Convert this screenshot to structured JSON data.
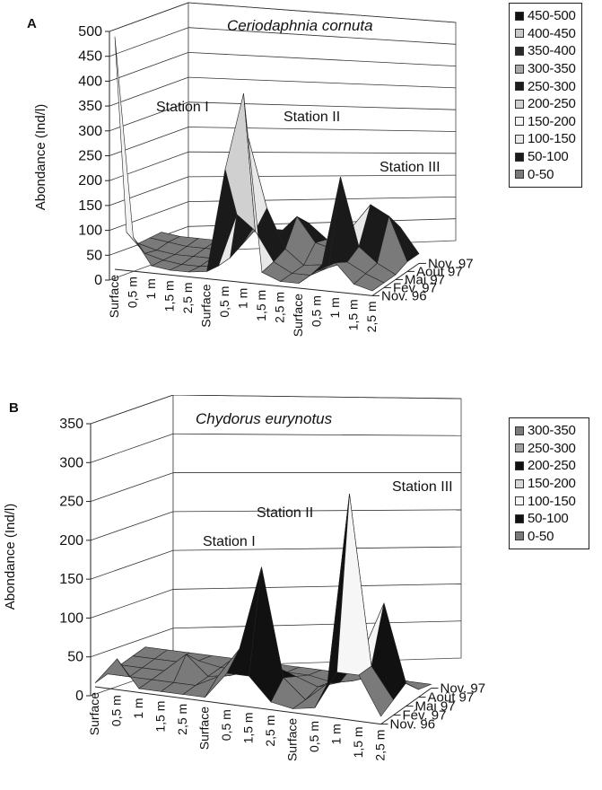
{
  "chart_data": [
    {
      "panel_label": "A",
      "type": "surface",
      "title": "Ceriodaphnia cornuta",
      "ylabel": "Abondance (Ind/l)",
      "ylim": [
        0,
        500
      ],
      "yticks": [
        "0",
        "50",
        "100",
        "150",
        "200",
        "250",
        "300",
        "350",
        "400",
        "450",
        "500"
      ],
      "x_tick_labels": [
        "Surface",
        "0,5 m",
        "1 m",
        "1,5 m",
        "2,5 m",
        "Surface",
        "0,5 m",
        "1 m",
        "1,5 m",
        "2,5 m",
        "Surface",
        "0,5 m",
        "1 m",
        "1,5 m",
        "2,5 m"
      ],
      "z_categories": [
        "Nov. 96",
        "Fév. 97",
        "Mai 97",
        "Août 97",
        "Nov. 97"
      ],
      "station_labels": [
        "Station I",
        "Station II",
        "Station III"
      ],
      "legend": [
        "450-500",
        "400-450",
        "350-400",
        "300-350",
        "250-300",
        "200-250",
        "150-200",
        "100-150",
        "50-100",
        "0-50"
      ],
      "series": [
        {
          "name": "Nov. 96",
          "values": [
            480,
            70,
            15,
            10,
            10,
            15,
            230,
            390,
            25,
            10,
            10,
            40,
            60,
            20,
            10
          ]
        },
        {
          "name": "Fév. 97",
          "values": [
            60,
            20,
            10,
            5,
            5,
            10,
            120,
            90,
            30,
            10,
            10,
            30,
            45,
            25,
            10
          ]
        },
        {
          "name": "Mai 97",
          "values": [
            20,
            10,
            5,
            5,
            5,
            10,
            260,
            120,
            40,
            10,
            15,
            200,
            60,
            30,
            10
          ]
        },
        {
          "name": "Août 97",
          "values": [
            15,
            10,
            5,
            5,
            5,
            20,
            80,
            50,
            90,
            40,
            30,
            80,
            130,
            110,
            20
          ]
        },
        {
          "name": "Nov. 97",
          "values": [
            10,
            5,
            5,
            5,
            5,
            30,
            40,
            40,
            60,
            30,
            20,
            60,
            50,
            70,
            20
          ]
        }
      ]
    },
    {
      "panel_label": "B",
      "type": "surface",
      "title": "Chydorus eurynotus",
      "ylabel": "Abondance (Ind/l)",
      "ylim": [
        0,
        350
      ],
      "yticks": [
        "0",
        "50",
        "100",
        "150",
        "200",
        "250",
        "300",
        "350"
      ],
      "x_tick_labels": [
        "Surface",
        "0,5 m",
        "1 m",
        "1,5 m",
        "2,5 m",
        "Surface",
        "0,5 m",
        "1,5 m",
        "2,5 m",
        "Surface",
        "0,5 m",
        "1 m",
        "1,5 m",
        "2,5 m"
      ],
      "z_categories": [
        "Nov. 96",
        "Fév. 97",
        "Mai 97",
        "Août 97",
        "Nov. 97"
      ],
      "station_labels": [
        "Station I",
        "Station II",
        "Station III"
      ],
      "legend": [
        "300-350",
        "250-300",
        "200-250",
        "150-200",
        "100-150",
        "50-100",
        "0-50"
      ],
      "series": [
        {
          "name": "Nov. 96",
          "values": [
            5,
            40,
            5,
            5,
            5,
            5,
            40,
            40,
            10,
            5,
            10,
            60,
            60,
            10
          ]
        },
        {
          "name": "Fév. 97",
          "values": [
            5,
            5,
            5,
            5,
            5,
            20,
            60,
            170,
            30,
            5,
            30,
            280,
            60,
            20
          ]
        },
        {
          "name": "Mai 97",
          "values": [
            5,
            5,
            5,
            30,
            5,
            10,
            20,
            30,
            20,
            10,
            20,
            60,
            130,
            30
          ]
        },
        {
          "name": "Août 97",
          "values": [
            5,
            5,
            5,
            10,
            5,
            5,
            10,
            10,
            10,
            5,
            10,
            20,
            20,
            10
          ]
        },
        {
          "name": "Nov. 97",
          "values": [
            5,
            5,
            5,
            5,
            5,
            5,
            5,
            5,
            5,
            5,
            5,
            5,
            5,
            5
          ]
        }
      ]
    }
  ],
  "colors": {
    "bands_a": [
      "#7a7a7a",
      "#1a1a1a",
      "#e8e8e8",
      "#f4f4f4",
      "#d0d0d0",
      "#1e1e1e",
      "#a8a8a8",
      "#2a2a2a",
      "#c9c9c9",
      "#111111"
    ],
    "bands_b": [
      "#7a7a7a",
      "#111111",
      "#f6f6f6",
      "#d8d8d8",
      "#111111",
      "#a0a0a0",
      "#7a7a7a"
    ],
    "axis": "#222222",
    "grid": "#333333"
  }
}
